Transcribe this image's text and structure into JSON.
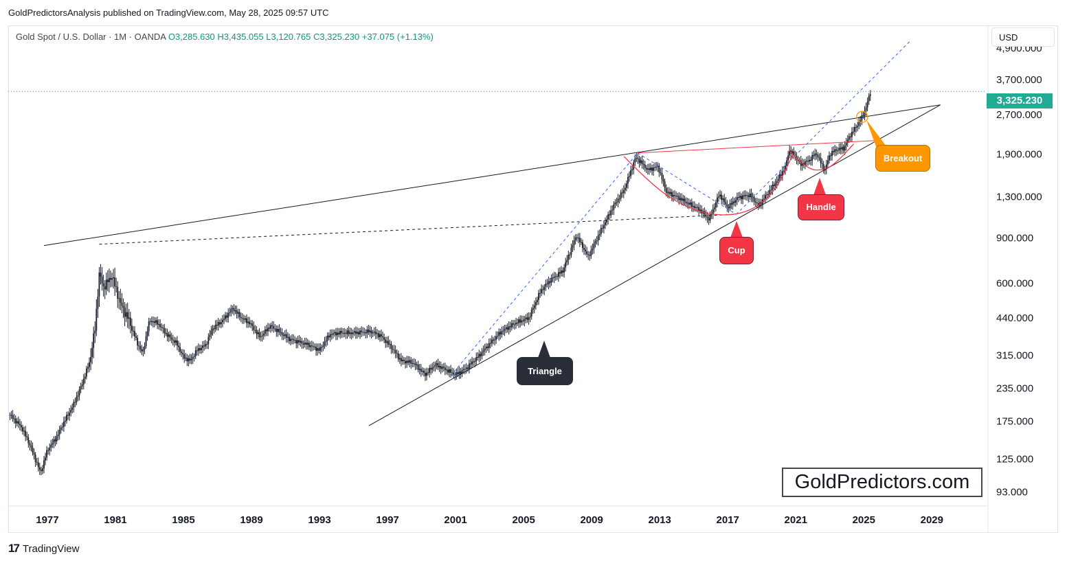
{
  "header": {
    "publisher": "GoldPredictorsAnalysis published on TradingView.com, May 28, 2025 09:57 UTC"
  },
  "legend": {
    "symbol": "Gold Spot / U.S. Dollar · 1M · OANDA",
    "open": "O3,285.630",
    "high": "H3,435.055",
    "low": "L3,120.765",
    "close": "C3,325.230",
    "change": "+37.075 (+1.13%)"
  },
  "price_scale": {
    "currency": "USD",
    "last_price": "3,325.230",
    "last_price_color": "#22ab94"
  },
  "watermark": "GoldPredictors.com",
  "footer": {
    "brand": "TradingView"
  },
  "chart_data": {
    "type": "candlestick",
    "title": "Gold Spot / U.S. Dollar",
    "interval": "1M",
    "scale": "log",
    "ylim": [
      82,
      6000
    ],
    "xlim": [
      1974.7,
      2032.3
    ],
    "x_ticks": [
      "1977",
      "1981",
      "1985",
      "1989",
      "1993",
      "1997",
      "2001",
      "2005",
      "2009",
      "2013",
      "2017",
      "2021",
      "2025",
      "2029"
    ],
    "y_ticks": [
      4900,
      3700,
      2700,
      1900,
      1300,
      900,
      600,
      440,
      315,
      235,
      175,
      125,
      93
    ],
    "y_tick_labels": [
      "4,900.000",
      "3,700.000",
      "2,700.000",
      "1,900.000",
      "1,300.000",
      "900.000",
      "600.000",
      "440.000",
      "315.000",
      "235.000",
      "175.000",
      "125.000",
      "93.000"
    ],
    "price_path": [
      [
        1974.8,
        185
      ],
      [
        1975.5,
        165
      ],
      [
        1976.0,
        140
      ],
      [
        1976.6,
        110
      ],
      [
        1977.0,
        135
      ],
      [
        1977.5,
        150
      ],
      [
        1978.0,
        175
      ],
      [
        1978.5,
        200
      ],
      [
        1979.0,
        240
      ],
      [
        1979.5,
        300
      ],
      [
        1979.8,
        400
      ],
      [
        1980.05,
        650
      ],
      [
        1980.3,
        580
      ],
      [
        1980.8,
        640
      ],
      [
        1981.3,
        500
      ],
      [
        1981.8,
        430
      ],
      [
        1982.3,
        350
      ],
      [
        1982.6,
        320
      ],
      [
        1983.0,
        430
      ],
      [
        1983.5,
        420
      ],
      [
        1984.0,
        380
      ],
      [
        1984.6,
        350
      ],
      [
        1985.0,
        310
      ],
      [
        1985.4,
        300
      ],
      [
        1985.8,
        330
      ],
      [
        1986.3,
        345
      ],
      [
        1986.7,
        400
      ],
      [
        1987.3,
        430
      ],
      [
        1987.9,
        480
      ],
      [
        1988.4,
        440
      ],
      [
        1988.9,
        420
      ],
      [
        1989.5,
        370
      ],
      [
        1990.1,
        410
      ],
      [
        1990.6,
        390
      ],
      [
        1991.2,
        365
      ],
      [
        1991.8,
        355
      ],
      [
        1992.4,
        345
      ],
      [
        1993.0,
        330
      ],
      [
        1993.6,
        380
      ],
      [
        1994.2,
        385
      ],
      [
        1995.0,
        385
      ],
      [
        1996.0,
        390
      ],
      [
        1996.6,
        375
      ],
      [
        1997.2,
        340
      ],
      [
        1997.8,
        300
      ],
      [
        1998.5,
        295
      ],
      [
        1999.2,
        265
      ],
      [
        1999.8,
        290
      ],
      [
        2000.3,
        280
      ],
      [
        2001.0,
        265
      ],
      [
        2001.6,
        280
      ],
      [
        2002.3,
        310
      ],
      [
        2003.0,
        350
      ],
      [
        2003.7,
        390
      ],
      [
        2004.5,
        420
      ],
      [
        2005.3,
        440
      ],
      [
        2006.0,
        560
      ],
      [
        2006.6,
        620
      ],
      [
        2007.3,
        670
      ],
      [
        2008.1,
        920
      ],
      [
        2008.8,
        760
      ],
      [
        2009.5,
        950
      ],
      [
        2010.3,
        1200
      ],
      [
        2010.9,
        1380
      ],
      [
        2011.6,
        1850
      ],
      [
        2012.3,
        1650
      ],
      [
        2012.9,
        1700
      ],
      [
        2013.4,
        1350
      ],
      [
        2014.0,
        1300
      ],
      [
        2014.7,
        1220
      ],
      [
        2015.4,
        1150
      ],
      [
        2015.9,
        1060
      ],
      [
        2016.5,
        1330
      ],
      [
        2017.0,
        1180
      ],
      [
        2017.6,
        1290
      ],
      [
        2018.3,
        1320
      ],
      [
        2018.8,
        1200
      ],
      [
        2019.4,
        1350
      ],
      [
        2019.9,
        1500
      ],
      [
        2020.4,
        1700
      ],
      [
        2020.6,
        1970
      ],
      [
        2021.0,
        1850
      ],
      [
        2021.3,
        1730
      ],
      [
        2021.8,
        1800
      ],
      [
        2022.2,
        1920
      ],
      [
        2022.7,
        1640
      ],
      [
        2023.0,
        1900
      ],
      [
        2023.4,
        1980
      ],
      [
        2023.8,
        2000
      ],
      [
        2024.2,
        2250
      ],
      [
        2024.6,
        2450
      ],
      [
        2024.9,
        2650
      ],
      [
        2025.1,
        2850
      ],
      [
        2025.4,
        3325
      ]
    ],
    "series_last": {
      "open": 3285.63,
      "high": 3435.055,
      "low": 3120.765,
      "close": 3325.23
    },
    "trendlines": [
      {
        "name": "triangle-upper",
        "style": "solid",
        "color": "#131722",
        "from": [
          1976.8,
          840
        ],
        "to": [
          2029.5,
          2950
        ]
      },
      {
        "name": "triangle-lower",
        "style": "solid",
        "color": "#131722",
        "from": [
          1995.9,
          168
        ],
        "to": [
          2029.5,
          2950
        ]
      },
      {
        "name": "neckline-1980",
        "style": "dashed",
        "color": "#131722",
        "from": [
          1980.05,
          850
        ],
        "to": [
          2017.5,
          1110
        ]
      },
      {
        "name": "cup-rim",
        "style": "solid",
        "color": "#f23645",
        "from": [
          2011.7,
          1920
        ],
        "to": [
          2026.0,
          2150
        ]
      },
      {
        "name": "channel-2001",
        "style": "dashed",
        "color": "#2962ff",
        "from": [
          2000.7,
          262
        ],
        "to": [
          2011.7,
          1920
        ]
      },
      {
        "name": "channel-2012",
        "style": "dashed",
        "color": "#2962ff",
        "from": [
          2011.7,
          1920
        ],
        "to": [
          2017.5,
          1110
        ]
      },
      {
        "name": "channel-2017",
        "style": "dashed",
        "color": "#2962ff",
        "from": [
          2017.5,
          1110
        ],
        "to": [
          2027.7,
          5200
        ]
      }
    ],
    "curves": [
      {
        "name": "cup",
        "color": "#f23645",
        "points": [
          [
            2010.9,
            1860
          ],
          [
            2012.5,
            1450
          ],
          [
            2014.3,
            1200
          ],
          [
            2016.3,
            1090
          ],
          [
            2018.3,
            1130
          ],
          [
            2019.8,
            1360
          ],
          [
            2020.8,
            1880
          ]
        ]
      },
      {
        "name": "handle",
        "color": "#f23645",
        "points": [
          [
            2020.6,
            1970
          ],
          [
            2021.6,
            1660
          ],
          [
            2022.7,
            1640
          ],
          [
            2023.5,
            1790
          ],
          [
            2024.4,
            2080
          ]
        ]
      }
    ],
    "current_price_line": 3325.23,
    "breakout_point": [
      2024.9,
      2650
    ],
    "annotations": [
      {
        "text": "Triangle",
        "color": "#2a2e39"
      },
      {
        "text": "Cup",
        "color": "#f23645"
      },
      {
        "text": "Handle",
        "color": "#f23645"
      },
      {
        "text": "Breakout",
        "color": "#ff9800"
      }
    ]
  }
}
